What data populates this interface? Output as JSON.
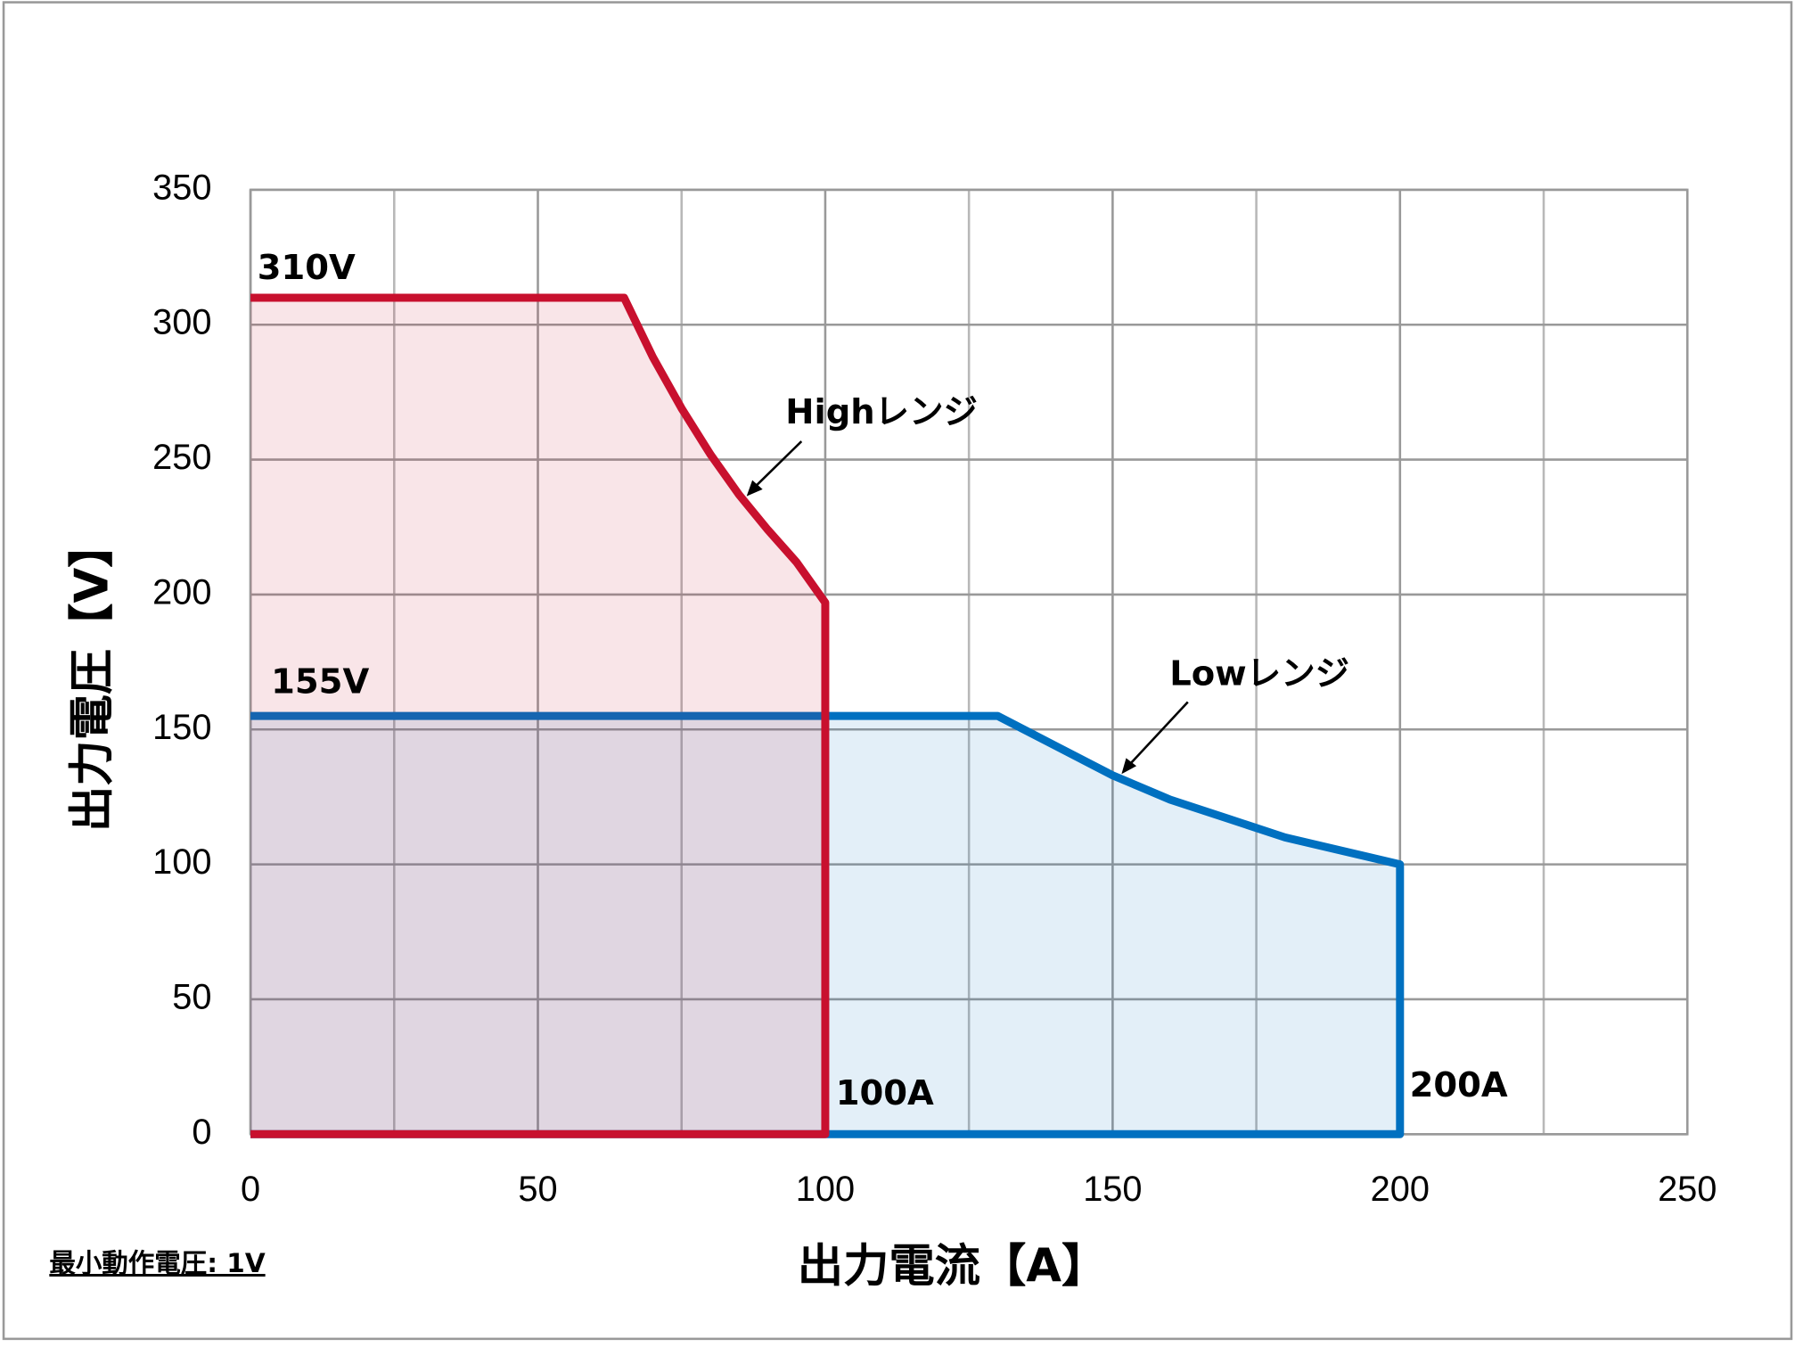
{
  "chart_data": {
    "type": "area",
    "x_label": "出力電流【A】",
    "y_label": "出力電圧【V】",
    "xlim": [
      0,
      250
    ],
    "xticks": [
      0,
      50,
      100,
      150,
      200,
      250
    ],
    "x_minor_ticks": [
      25,
      75,
      125,
      175,
      225
    ],
    "ylim": [
      0,
      350
    ],
    "yticks": [
      0,
      50,
      100,
      150,
      200,
      250,
      300,
      350
    ],
    "grid": true,
    "series": [
      {
        "name": "Lowレンジ",
        "color": "#0070c0",
        "fill": "rgba(0,112,192,0.11)",
        "x": [
          0,
          130,
          140,
          150,
          160,
          170,
          180,
          190,
          200,
          200
        ],
        "values": [
          155,
          155,
          144,
          133,
          124,
          117,
          110,
          105,
          100,
          0
        ]
      },
      {
        "name": "Highレンジ",
        "color": "#c8102e",
        "fill": "rgba(200,16,46,0.11)",
        "x": [
          0,
          65,
          70,
          75,
          80,
          85,
          90,
          95,
          100,
          100
        ],
        "values": [
          310,
          310,
          288,
          269,
          252,
          237,
          224,
          212,
          197,
          0
        ]
      }
    ],
    "annotations": [
      "310V",
      "155V",
      "100A",
      "200A"
    ],
    "note": "最小動作電圧: 1V"
  }
}
